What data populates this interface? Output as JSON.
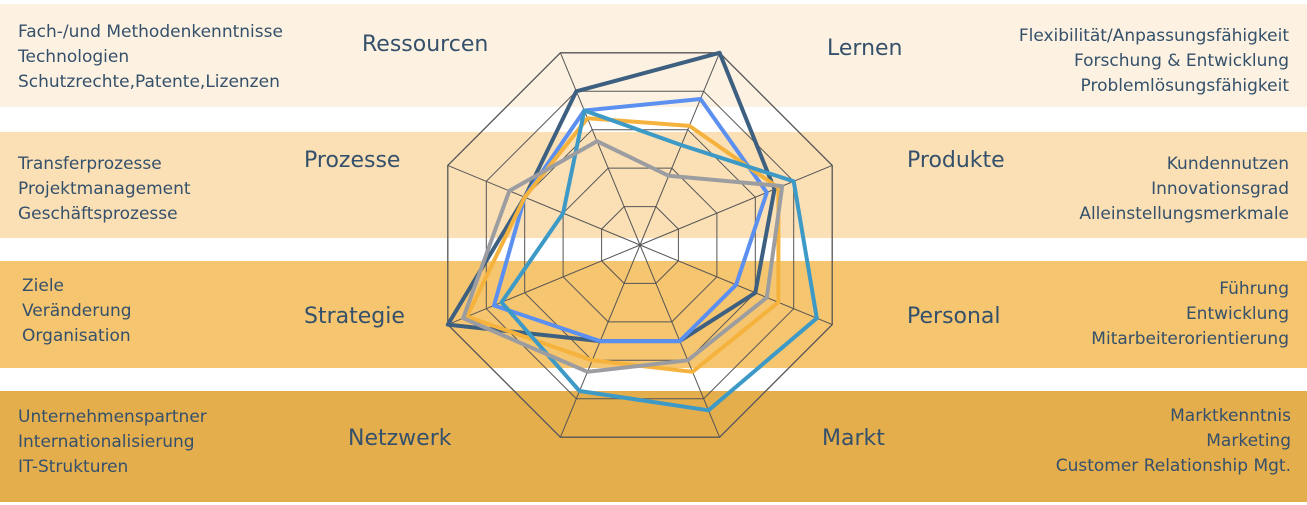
{
  "colors": {
    "band1": "#fdf2e1",
    "band2": "#fbe0b6",
    "band3": "#f6c56f",
    "band4": "#e5ae4d",
    "grid": "#555555",
    "text": "#34506b"
  },
  "sections": {
    "ressourcen": {
      "title": "Ressourcen",
      "items": [
        "Fach-/und Methodenkenntnisse",
        "Technologien",
        "Schutzrechte,Patente,Lizenzen"
      ]
    },
    "lernen": {
      "title": "Lernen",
      "items": [
        "Flexibilität/Anpassungsfähigkeit",
        "Forschung & Entwicklung",
        "Problemlösungsfähigkeit"
      ]
    },
    "prozesse": {
      "title": "Prozesse",
      "items": [
        "Transferprozesse",
        "Projektmanagement",
        "Geschäftsprozesse"
      ]
    },
    "produkte": {
      "title": "Produkte",
      "items": [
        "Kundennutzen",
        "Innovationsgrad",
        "Alleinstellungsmerkmale"
      ]
    },
    "strategie": {
      "title": "Strategie",
      "items": [
        "Ziele",
        "Veränderung",
        "Organisation"
      ]
    },
    "personal": {
      "title": "Personal",
      "items": [
        "Führung",
        "Entwicklung",
        "Mitarbeiterorientierung"
      ]
    },
    "netzwerk": {
      "title": "Netzwerk",
      "items": [
        "Unternehmenspartner",
        "Internationalisierung",
        "IT-Strukturen"
      ]
    },
    "markt": {
      "title": "Markt",
      "items": [
        "Marktkenntnis",
        "Marketing",
        "Customer Relationship Mgt."
      ]
    }
  },
  "chart_data": {
    "type": "radar",
    "axes": [
      "Lernen",
      "Produkte",
      "Personal",
      "Markt",
      "Netzwerk",
      "Strategie",
      "Prozesse",
      "Ressourcen"
    ],
    "rmax": 5,
    "grid_levels": 5,
    "series": [
      {
        "color": "#3d5f80",
        "values": [
          5.0,
          3.5,
          3.0,
          2.5,
          2.5,
          5.0,
          3.0,
          4.0
        ]
      },
      {
        "color": "#5b8ff0",
        "values": [
          3.8,
          3.3,
          2.5,
          2.5,
          2.5,
          3.8,
          3.0,
          3.5
        ]
      },
      {
        "color": "#f5b23c",
        "values": [
          3.1,
          3.6,
          3.6,
          3.3,
          3.0,
          4.5,
          3.0,
          3.3
        ]
      },
      {
        "color": "#3d9ac6",
        "values": [
          2.6,
          4.0,
          4.6,
          4.3,
          3.8,
          3.6,
          2.0,
          3.5
        ]
      },
      {
        "color": "#9c9da1",
        "values": [
          1.8,
          3.7,
          3.3,
          3.0,
          3.3,
          4.6,
          3.4,
          2.7
        ]
      }
    ]
  }
}
